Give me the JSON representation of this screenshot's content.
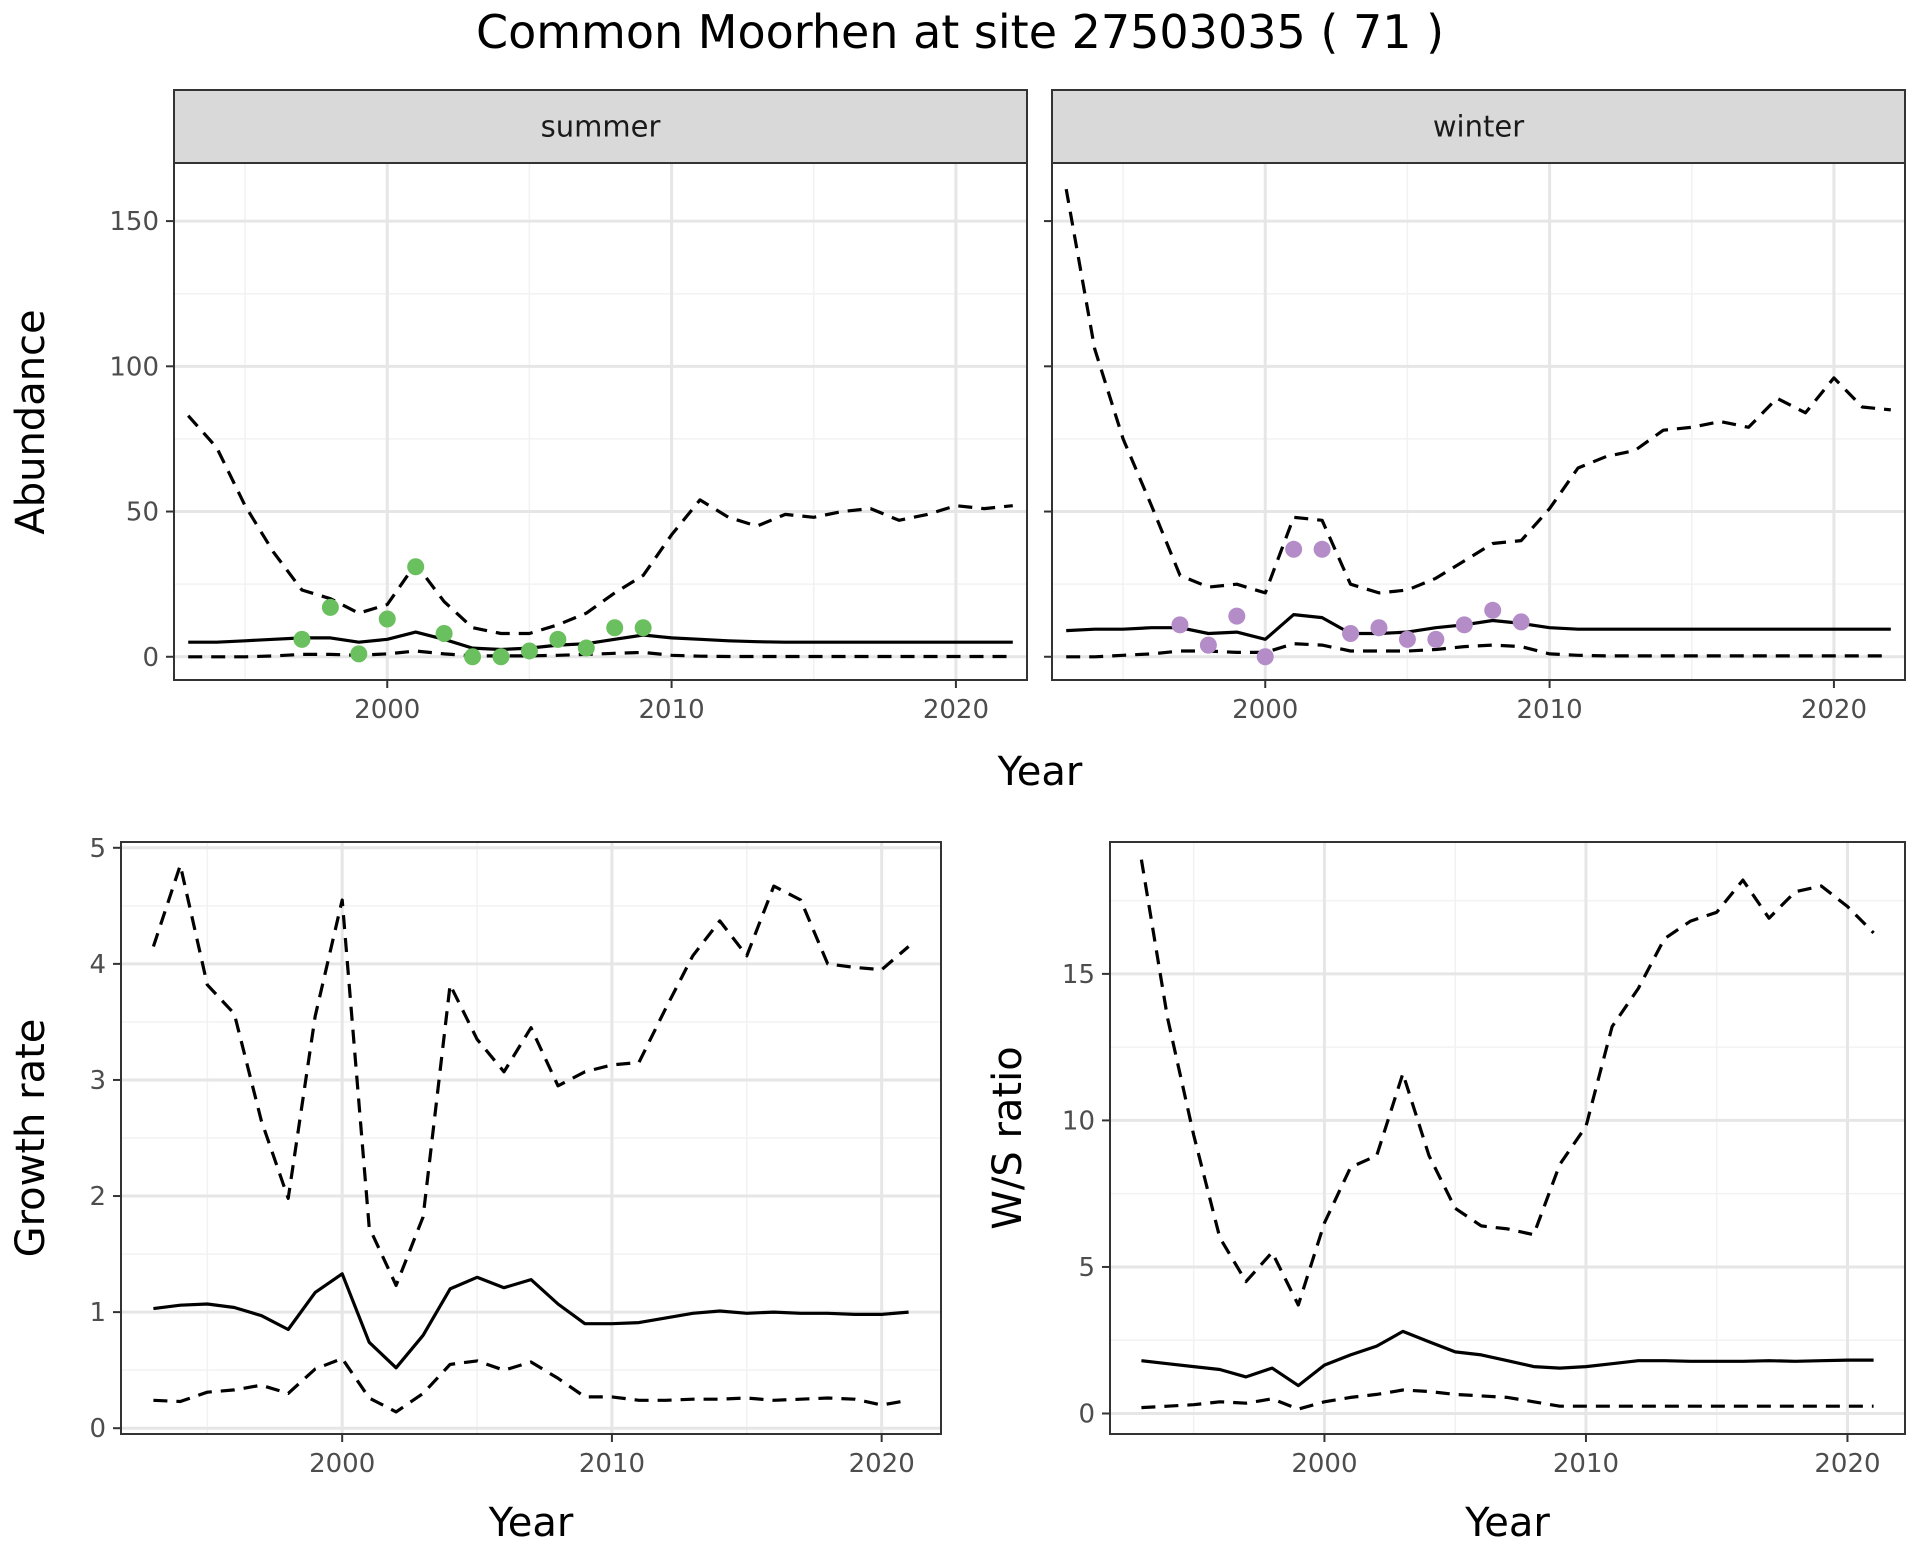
{
  "title": "Common Moorhen at site 27503035 ( 71 )",
  "colors": {
    "summer_points": "#6abf5e",
    "winter_points": "#b48cc8",
    "line": "#000000",
    "grid_major": "#e6e6e6",
    "grid_minor": "#f2f2f2",
    "strip_fill": "#d9d9d9",
    "tick_text": "#4d4d4d"
  },
  "chart_data": [
    {
      "id": "summer",
      "type": "line",
      "strip": "summer",
      "ylabel": "Abundance",
      "xlim": [
        1992.5,
        2022.5
      ],
      "ylim": [
        -8,
        170
      ],
      "xticks": [
        2000,
        2010,
        2020
      ],
      "yticks": [
        0,
        50,
        100,
        150
      ],
      "grid": true,
      "point_color": "#6abf5e",
      "x": [
        1993,
        1994,
        1995,
        1996,
        1997,
        1998,
        1999,
        2000,
        2001,
        2002,
        2003,
        2004,
        2005,
        2006,
        2007,
        2008,
        2009,
        2010,
        2011,
        2012,
        2013,
        2014,
        2015,
        2016,
        2017,
        2018,
        2019,
        2020,
        2021,
        2022
      ],
      "series": [
        {
          "role": "estimate",
          "dash": "solid",
          "values": [
            5,
            5,
            5.5,
            6,
            6.5,
            6.5,
            5,
            6,
            8.5,
            6,
            3,
            2.5,
            3,
            4,
            4.5,
            6,
            7.5,
            6.5,
            6,
            5.5,
            5.2,
            5,
            5,
            5,
            5,
            5,
            5,
            5,
            5,
            5
          ]
        },
        {
          "role": "upper",
          "dash": "dashed",
          "values": [
            83,
            72,
            52,
            36,
            23,
            20,
            15,
            18,
            32,
            19,
            10,
            8,
            8,
            11,
            15,
            22,
            28,
            42,
            54,
            48,
            45,
            49,
            48,
            50,
            51,
            47,
            49,
            52,
            51,
            52
          ]
        },
        {
          "role": "lower",
          "dash": "dashed",
          "values": [
            0,
            0,
            0,
            0.3,
            0.8,
            0.8,
            0.5,
            1,
            2,
            1,
            0.3,
            0.3,
            0.3,
            0.5,
            0.8,
            1.2,
            1.5,
            0.5,
            0.2,
            0.1,
            0.1,
            0.1,
            0.1,
            0.1,
            0.1,
            0.1,
            0.1,
            0.1,
            0.1,
            0.1
          ]
        }
      ],
      "points": [
        {
          "x": 1997,
          "y": 6
        },
        {
          "x": 1998,
          "y": 17
        },
        {
          "x": 1999,
          "y": 1
        },
        {
          "x": 2000,
          "y": 13
        },
        {
          "x": 2001,
          "y": 31
        },
        {
          "x": 2002,
          "y": 8
        },
        {
          "x": 2003,
          "y": 0
        },
        {
          "x": 2004,
          "y": 0
        },
        {
          "x": 2005,
          "y": 2
        },
        {
          "x": 2006,
          "y": 6
        },
        {
          "x": 2007,
          "y": 3
        },
        {
          "x": 2008,
          "y": 10
        },
        {
          "x": 2009,
          "y": 10
        }
      ]
    },
    {
      "id": "winter",
      "type": "line",
      "strip": "winter",
      "ylabel": "",
      "xlim": [
        1992.5,
        2022.5
      ],
      "ylim": [
        -8,
        170
      ],
      "xticks": [
        2000,
        2010,
        2020
      ],
      "yticks": [
        0,
        50,
        100,
        150
      ],
      "grid": true,
      "point_color": "#b48cc8",
      "x": [
        1993,
        1994,
        1995,
        1996,
        1997,
        1998,
        1999,
        2000,
        2001,
        2002,
        2003,
        2004,
        2005,
        2006,
        2007,
        2008,
        2009,
        2010,
        2011,
        2012,
        2013,
        2014,
        2015,
        2016,
        2017,
        2018,
        2019,
        2020,
        2021,
        2022
      ],
      "series": [
        {
          "role": "estimate",
          "dash": "solid",
          "values": [
            9,
            9.5,
            9.5,
            10,
            10,
            8,
            8.5,
            6,
            14.5,
            13.5,
            8,
            8,
            8.5,
            10,
            11,
            12.5,
            11.5,
            10,
            9.5,
            9.5,
            9.5,
            9.5,
            9.5,
            9.5,
            9.5,
            9.5,
            9.5,
            9.5,
            9.5,
            9.5
          ]
        },
        {
          "role": "upper",
          "dash": "dashed",
          "values": [
            161,
            106,
            75,
            52,
            28,
            24,
            25,
            22,
            48,
            47,
            25,
            22,
            23,
            27,
            33,
            39,
            40,
            51,
            65,
            69,
            71,
            78,
            79,
            81,
            79,
            89,
            84,
            96,
            86,
            85
          ]
        },
        {
          "role": "lower",
          "dash": "dashed",
          "values": [
            0,
            0,
            0.5,
            1,
            2,
            2,
            1.5,
            1.5,
            4.5,
            4,
            2,
            2,
            2,
            2.5,
            3.5,
            4,
            3.5,
            1,
            0.5,
            0.3,
            0.3,
            0.3,
            0.3,
            0.3,
            0.3,
            0.3,
            0.3,
            0.3,
            0.3,
            0.3
          ]
        }
      ],
      "points": [
        {
          "x": 1997,
          "y": 11
        },
        {
          "x": 1998,
          "y": 4
        },
        {
          "x": 1999,
          "y": 14
        },
        {
          "x": 2000,
          "y": 0
        },
        {
          "x": 2001,
          "y": 37
        },
        {
          "x": 2002,
          "y": 37
        },
        {
          "x": 2003,
          "y": 8
        },
        {
          "x": 2004,
          "y": 10
        },
        {
          "x": 2005,
          "y": 6
        },
        {
          "x": 2006,
          "y": 6
        },
        {
          "x": 2007,
          "y": 11
        },
        {
          "x": 2008,
          "y": 16
        },
        {
          "x": 2009,
          "y": 12
        }
      ]
    },
    {
      "id": "growth",
      "type": "line",
      "xlabel": "Year",
      "ylabel": "Growth rate",
      "xlim": [
        1991.8,
        2022.2
      ],
      "ylim": [
        -0.05,
        5.05
      ],
      "xticks": [
        2000,
        2010,
        2020
      ],
      "yticks": [
        0,
        1,
        2,
        3,
        4,
        5
      ],
      "grid": true,
      "x": [
        1993,
        1994,
        1995,
        1996,
        1997,
        1998,
        1999,
        2000,
        2001,
        2002,
        2003,
        2004,
        2005,
        2006,
        2007,
        2008,
        2009,
        2010,
        2011,
        2012,
        2013,
        2014,
        2015,
        2016,
        2017,
        2018,
        2019,
        2020,
        2021
      ],
      "series": [
        {
          "role": "estimate",
          "dash": "solid",
          "values": [
            1.03,
            1.06,
            1.07,
            1.04,
            0.97,
            0.85,
            1.17,
            1.33,
            0.74,
            0.52,
            0.8,
            1.2,
            1.3,
            1.21,
            1.28,
            1.07,
            0.9,
            0.9,
            0.91,
            0.95,
            0.99,
            1.01,
            0.99,
            1,
            0.99,
            0.99,
            0.98,
            0.98,
            1
          ]
        },
        {
          "role": "upper",
          "dash": "dashed",
          "values": [
            4.15,
            4.85,
            3.82,
            3.57,
            2.65,
            1.98,
            3.55,
            4.55,
            1.73,
            1.23,
            1.82,
            3.82,
            3.35,
            3.07,
            3.45,
            2.95,
            3.07,
            3.13,
            3.15,
            3.62,
            4.07,
            4.37,
            4.07,
            4.67,
            4.55,
            4,
            3.97,
            3.95,
            4.15
          ]
        },
        {
          "role": "lower",
          "dash": "dashed",
          "values": [
            0.24,
            0.23,
            0.31,
            0.33,
            0.37,
            0.3,
            0.51,
            0.6,
            0.26,
            0.14,
            0.3,
            0.55,
            0.58,
            0.5,
            0.57,
            0.43,
            0.27,
            0.27,
            0.24,
            0.24,
            0.25,
            0.25,
            0.26,
            0.24,
            0.25,
            0.26,
            0.25,
            0.2,
            0.24
          ]
        }
      ]
    },
    {
      "id": "ratio",
      "type": "line",
      "xlabel": "Year",
      "ylabel": "W/S ratio",
      "xlim": [
        1991.8,
        2022.2
      ],
      "ylim": [
        -0.7,
        19.5
      ],
      "xticks": [
        2000,
        2010,
        2020
      ],
      "yticks": [
        0,
        5,
        10,
        15
      ],
      "grid": true,
      "x": [
        1993,
        1994,
        1995,
        1996,
        1997,
        1998,
        1999,
        2000,
        2001,
        2002,
        2003,
        2004,
        2005,
        2006,
        2007,
        2008,
        2009,
        2010,
        2011,
        2012,
        2013,
        2014,
        2015,
        2016,
        2017,
        2018,
        2019,
        2020,
        2021
      ],
      "series": [
        {
          "role": "estimate",
          "dash": "solid",
          "values": [
            1.8,
            1.7,
            1.6,
            1.5,
            1.25,
            1.55,
            0.95,
            1.65,
            2,
            2.3,
            2.8,
            2.45,
            2.1,
            2,
            1.8,
            1.6,
            1.55,
            1.6,
            1.7,
            1.8,
            1.8,
            1.78,
            1.78,
            1.78,
            1.8,
            1.78,
            1.8,
            1.82,
            1.82
          ]
        },
        {
          "role": "upper",
          "dash": "dashed",
          "values": [
            18.9,
            13.5,
            9.5,
            6,
            4.5,
            5.5,
            3.7,
            6.5,
            8.4,
            8.8,
            11.6,
            8.8,
            7,
            6.4,
            6.3,
            6.1,
            8.5,
            9.8,
            13.2,
            14.5,
            16.2,
            16.8,
            17.1,
            18.2,
            16.9,
            17.8,
            18,
            17.3,
            16.4
          ]
        },
        {
          "role": "lower",
          "dash": "dashed",
          "values": [
            0.2,
            0.25,
            0.3,
            0.4,
            0.35,
            0.5,
            0.15,
            0.4,
            0.55,
            0.65,
            0.8,
            0.75,
            0.65,
            0.6,
            0.55,
            0.4,
            0.25,
            0.25,
            0.25,
            0.25,
            0.25,
            0.25,
            0.25,
            0.25,
            0.25,
            0.25,
            0.25,
            0.25,
            0.25
          ]
        }
      ]
    }
  ],
  "shared_xlabel_top": "Year"
}
